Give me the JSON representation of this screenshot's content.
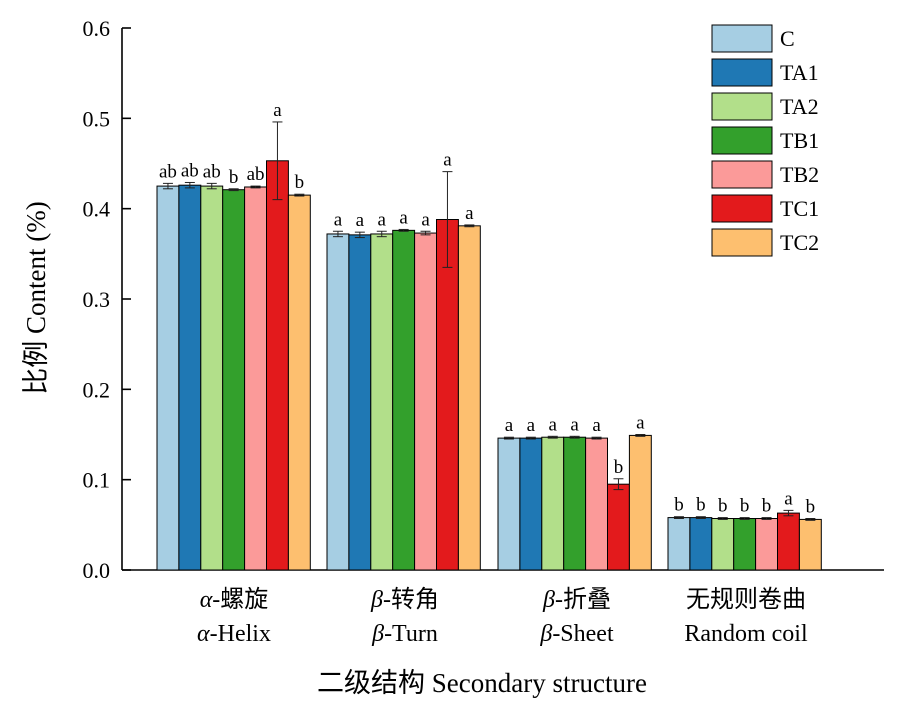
{
  "chart_data": {
    "type": "bar",
    "title": "",
    "xlabel": "二级结构 Secondary structure",
    "ylabel": "比例 Content (%)",
    "ylim": [
      0,
      0.6
    ],
    "yticks": [
      "0.0",
      "0.1",
      "0.2",
      "0.3",
      "0.4",
      "0.5",
      "0.6"
    ],
    "legend_position": "top-right",
    "categories": [
      {
        "cn_prefix": "α",
        "cn_suffix": "-螺旋",
        "en_prefix": "α",
        "en_suffix": "-Helix"
      },
      {
        "cn_prefix": "β",
        "cn_suffix": "-转角",
        "en_prefix": "β",
        "en_suffix": "-Turn"
      },
      {
        "cn_prefix": "β",
        "cn_suffix": "-折叠",
        "en_prefix": "β",
        "en_suffix": "-Sheet"
      },
      {
        "cn_prefix": "",
        "cn_suffix": "无规则卷曲",
        "en_prefix": "",
        "en_suffix": "Random coil"
      }
    ],
    "series": [
      {
        "name": "C",
        "color": "#a6cee3",
        "values": [
          0.425,
          0.372,
          0.146,
          0.058
        ],
        "errors": [
          0.003,
          0.003,
          0.001,
          0.001
        ],
        "labels": [
          "ab",
          "a",
          "a",
          "b"
        ]
      },
      {
        "name": "TA1",
        "color": "#1f78b4",
        "values": [
          0.426,
          0.371,
          0.146,
          0.058
        ],
        "errors": [
          0.003,
          0.003,
          0.001,
          0.001
        ],
        "labels": [
          "ab",
          "a",
          "a",
          "b"
        ]
      },
      {
        "name": "TA2",
        "color": "#b2df8a",
        "values": [
          0.425,
          0.372,
          0.147,
          0.057
        ],
        "errors": [
          0.003,
          0.003,
          0.001,
          0.001
        ],
        "labels": [
          "ab",
          "a",
          "a",
          "b"
        ]
      },
      {
        "name": "TB1",
        "color": "#33a02c",
        "values": [
          0.421,
          0.376,
          0.147,
          0.057
        ],
        "errors": [
          0.001,
          0.001,
          0.001,
          0.001
        ],
        "labels": [
          "b",
          "a",
          "a",
          "b"
        ]
      },
      {
        "name": "TB2",
        "color": "#fb9a99",
        "values": [
          0.424,
          0.373,
          0.146,
          0.057
        ],
        "errors": [
          0.001,
          0.002,
          0.001,
          0.001
        ],
        "labels": [
          "ab",
          "a",
          "a",
          "b"
        ]
      },
      {
        "name": "TC1",
        "color": "#e31a1c",
        "values": [
          0.453,
          0.388,
          0.095,
          0.063
        ],
        "errors": [
          0.043,
          0.053,
          0.006,
          0.003
        ],
        "labels": [
          "a",
          "a",
          "b",
          "a"
        ]
      },
      {
        "name": "TC2",
        "color": "#fdbf6f",
        "values": [
          0.415,
          0.381,
          0.149,
          0.056
        ],
        "errors": [
          0.001,
          0.001,
          0.001,
          0.001
        ],
        "labels": [
          "b",
          "a",
          "a",
          "b"
        ]
      }
    ]
  }
}
